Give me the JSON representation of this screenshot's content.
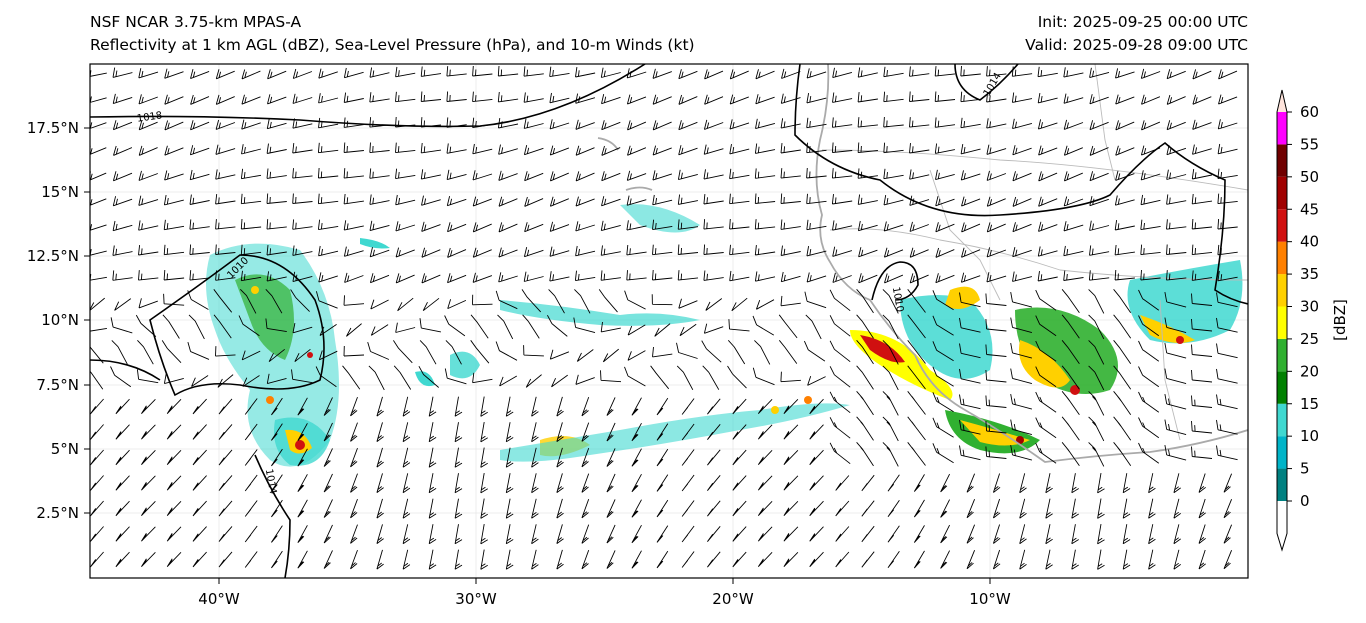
{
  "header": {
    "model": "NSF NCAR 3.75-km MPAS-A",
    "fields": "Reflectivity at 1 km AGL (dBZ), Sea-Level Pressure (hPa), and 10-m Winds (kt)",
    "init": "Init: 2025-09-25 00:00 UTC",
    "valid": "Valid: 2025-09-28 09:00 UTC"
  },
  "map": {
    "lon_range": [
      -45,
      0
    ],
    "lat_range": [
      0,
      20
    ],
    "lat_ticks": [
      "17.5°N",
      "15°N",
      "12.5°N",
      "10°N",
      "7.5°N",
      "5°N",
      "2.5°N"
    ],
    "lon_ticks": [
      "40°W",
      "30°W",
      "20°W",
      "10°W"
    ],
    "isobar_labels": [
      "1018",
      "1014",
      "1010",
      "1014",
      "1010"
    ],
    "coastline_color": "#aaaaaa",
    "isobar_color": "#000000"
  },
  "colorbar": {
    "label": "[dBZ]",
    "ticks": [
      "0",
      "5",
      "10",
      "15",
      "20",
      "25",
      "30",
      "35",
      "40",
      "45",
      "50",
      "55",
      "60"
    ],
    "colors": [
      "#008080",
      "#00b4c8",
      "#40d8d0",
      "#008000",
      "#30b030",
      "#ffff00",
      "#ffd000",
      "#ff8000",
      "#d01010",
      "#a00000",
      "#700000",
      "#ff00ff",
      "#ffe4dc"
    ]
  }
}
